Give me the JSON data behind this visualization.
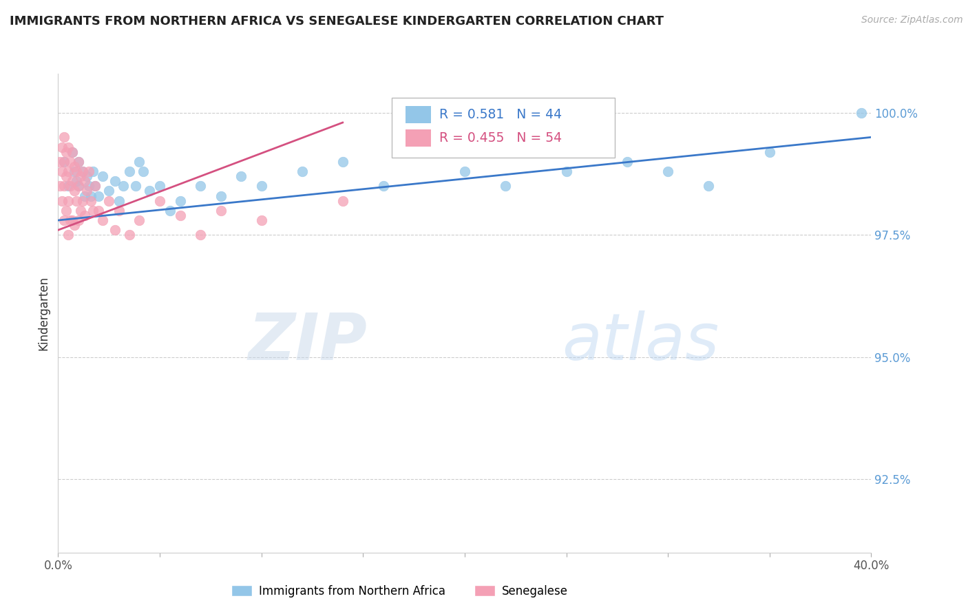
{
  "title": "IMMIGRANTS FROM NORTHERN AFRICA VS SENEGALESE KINDERGARTEN CORRELATION CHART",
  "source": "Source: ZipAtlas.com",
  "ylabel": "Kindergarten",
  "xlim": [
    0.0,
    0.4
  ],
  "ylim": [
    0.91,
    1.008
  ],
  "xticks": [
    0.0,
    0.05,
    0.1,
    0.15,
    0.2,
    0.25,
    0.3,
    0.35,
    0.4
  ],
  "xtick_labels": [
    "0.0%",
    "",
    "",
    "",
    "",
    "",
    "",
    "",
    "40.0%"
  ],
  "yticks": [
    0.925,
    0.95,
    0.975,
    1.0
  ],
  "ytick_labels": [
    "92.5%",
    "95.0%",
    "97.5%",
    "100.0%"
  ],
  "legend_blue_r": "R = 0.581",
  "legend_blue_n": "N = 44",
  "legend_pink_r": "R = 0.455",
  "legend_pink_n": "N = 54",
  "blue_color": "#93c6e8",
  "pink_color": "#f4a0b5",
  "blue_line_color": "#3a78c9",
  "pink_line_color": "#d45080",
  "blue_label": "Immigrants from Northern Africa",
  "pink_label": "Senegalese",
  "watermark_zip": "ZIP",
  "watermark_atlas": "atlas",
  "blue_x": [
    0.003,
    0.005,
    0.007,
    0.008,
    0.009,
    0.01,
    0.01,
    0.012,
    0.013,
    0.014,
    0.015,
    0.016,
    0.017,
    0.018,
    0.02,
    0.022,
    0.025,
    0.028,
    0.03,
    0.032,
    0.035,
    0.038,
    0.04,
    0.042,
    0.045,
    0.05,
    0.055,
    0.06,
    0.07,
    0.08,
    0.09,
    0.1,
    0.12,
    0.14,
    0.16,
    0.18,
    0.2,
    0.22,
    0.25,
    0.28,
    0.3,
    0.32,
    0.35,
    0.395
  ],
  "blue_y": [
    0.99,
    0.985,
    0.992,
    0.988,
    0.986,
    0.99,
    0.985,
    0.988,
    0.983,
    0.987,
    0.985,
    0.983,
    0.988,
    0.985,
    0.983,
    0.987,
    0.984,
    0.986,
    0.982,
    0.985,
    0.988,
    0.985,
    0.99,
    0.988,
    0.984,
    0.985,
    0.98,
    0.982,
    0.985,
    0.983,
    0.987,
    0.985,
    0.988,
    0.99,
    0.985,
    0.992,
    0.988,
    0.985,
    0.988,
    0.99,
    0.988,
    0.985,
    0.992,
    1.0
  ],
  "pink_x": [
    0.001,
    0.001,
    0.002,
    0.002,
    0.002,
    0.003,
    0.003,
    0.003,
    0.003,
    0.004,
    0.004,
    0.004,
    0.005,
    0.005,
    0.005,
    0.005,
    0.006,
    0.006,
    0.006,
    0.007,
    0.007,
    0.007,
    0.008,
    0.008,
    0.008,
    0.009,
    0.009,
    0.01,
    0.01,
    0.01,
    0.011,
    0.011,
    0.012,
    0.012,
    0.013,
    0.013,
    0.014,
    0.015,
    0.016,
    0.017,
    0.018,
    0.02,
    0.022,
    0.025,
    0.028,
    0.03,
    0.035,
    0.04,
    0.05,
    0.06,
    0.07,
    0.08,
    0.1,
    0.14
  ],
  "pink_y": [
    0.99,
    0.985,
    0.993,
    0.988,
    0.982,
    0.995,
    0.99,
    0.985,
    0.978,
    0.992,
    0.987,
    0.98,
    0.993,
    0.988,
    0.982,
    0.975,
    0.99,
    0.985,
    0.978,
    0.992,
    0.986,
    0.978,
    0.989,
    0.984,
    0.977,
    0.988,
    0.982,
    0.99,
    0.985,
    0.978,
    0.987,
    0.98,
    0.988,
    0.982,
    0.986,
    0.979,
    0.984,
    0.988,
    0.982,
    0.98,
    0.985,
    0.98,
    0.978,
    0.982,
    0.976,
    0.98,
    0.975,
    0.978,
    0.982,
    0.979,
    0.975,
    0.98,
    0.978,
    0.982
  ],
  "blue_trendline_x": [
    0.0,
    0.4
  ],
  "blue_trendline_y": [
    0.978,
    0.995
  ],
  "pink_trendline_x": [
    0.0,
    0.14
  ],
  "pink_trendline_y": [
    0.976,
    0.998
  ]
}
